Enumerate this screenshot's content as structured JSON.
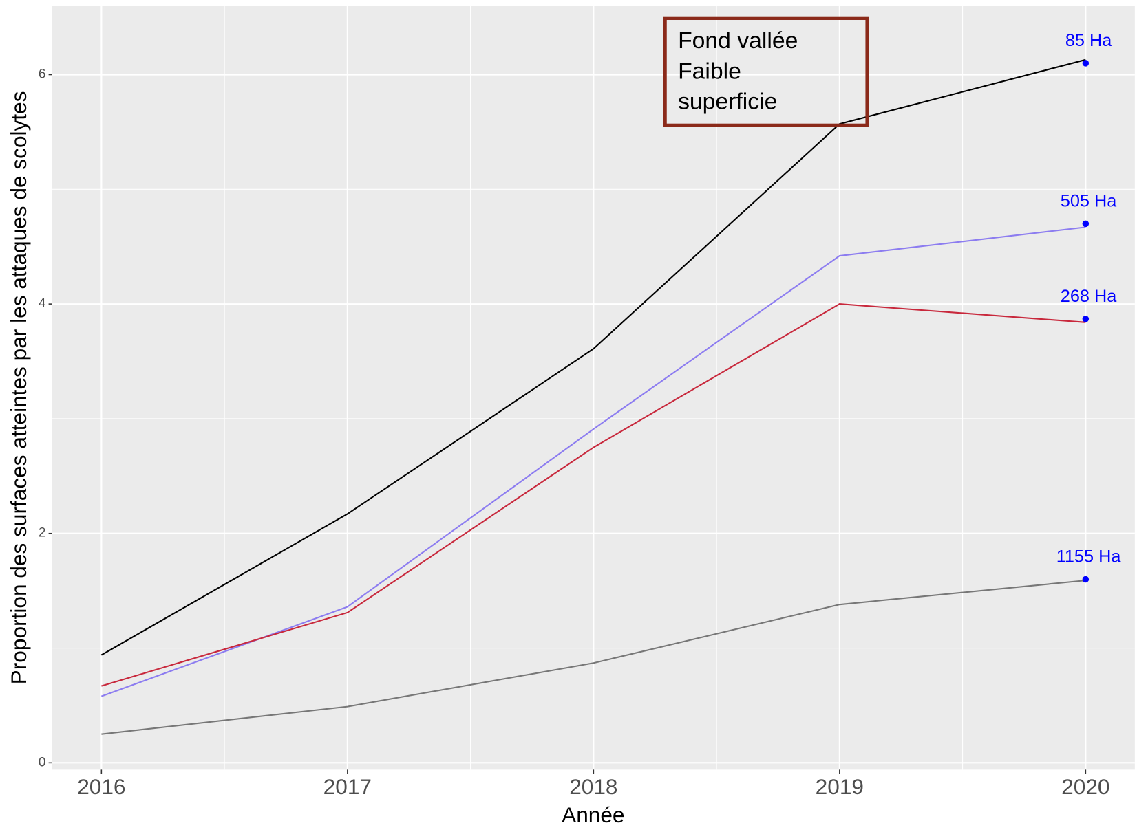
{
  "chart_data": {
    "type": "line",
    "x_label": "Année",
    "y_label": "Proportion des surfaces atteintes par les attaques de scolytes",
    "x": [
      2016,
      2017,
      2018,
      2019,
      2020
    ],
    "xlim": [
      2015.8,
      2020.2
    ],
    "xticks": [
      2016,
      2017,
      2018,
      2019,
      2020
    ],
    "ylim": [
      -0.06,
      6.6
    ],
    "yticks": [
      0,
      2,
      4,
      6
    ],
    "grid": true,
    "series": [
      {
        "color": "#000000",
        "values": [
          0.94,
          2.17,
          3.61,
          5.57,
          6.13
        ]
      },
      {
        "color": "#8c7cf0",
        "values": [
          0.58,
          1.36,
          2.91,
          4.42,
          4.67
        ]
      },
      {
        "color": "#c8283c",
        "values": [
          0.67,
          1.31,
          2.75,
          4.0,
          3.84
        ]
      },
      {
        "color": "#777777",
        "values": [
          0.25,
          0.49,
          0.87,
          1.38,
          1.59
        ]
      }
    ],
    "points": {
      "color": "#0000ff",
      "x": [
        2020,
        2020,
        2020,
        2020
      ],
      "values": [
        6.1,
        4.7,
        3.87,
        1.6
      ],
      "value_labels": [
        "85 Ha",
        "505 Ha",
        "268 Ha",
        "1155 Ha"
      ]
    },
    "annotation": [
      "Fond vallée",
      "Faible",
      "superficie"
    ]
  }
}
